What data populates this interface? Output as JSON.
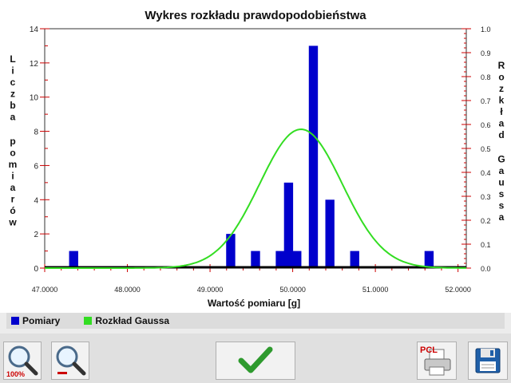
{
  "chart_data": {
    "type": "bar",
    "title": "Wykres rozkładu prawdopodobieństwa",
    "xlabel": "Wartość pomiaru [g]",
    "ylabel_left": "Liczba pomiarów",
    "ylabel_right": "Rozkład Gaussa",
    "xlim": [
      47.0,
      52.1
    ],
    "ylim_left": [
      0,
      14
    ],
    "ylim_right": [
      0,
      1.0
    ],
    "x_ticks": [
      "47.0000",
      "48.0000",
      "49.0000",
      "50.0000",
      "51.0000",
      "52.0000"
    ],
    "x_tick_values": [
      47,
      48,
      49,
      50,
      51,
      52
    ],
    "y_left_ticks": [
      0,
      2,
      4,
      6,
      8,
      10,
      12,
      14
    ],
    "y_right_ticks": [
      "0.0",
      "0.1",
      "0.2",
      "0.3",
      "0.4",
      "0.5",
      "0.6",
      "0.7",
      "0.8",
      "0.9",
      "1.0"
    ],
    "series": [
      {
        "name": "Pomiary",
        "kind": "bar",
        "color": "#0000cc",
        "x": [
          47.35,
          49.25,
          49.55,
          49.85,
          49.95,
          50.05,
          50.25,
          50.45,
          50.75,
          51.65
        ],
        "values": [
          1,
          2,
          1,
          1,
          5,
          1,
          13,
          4,
          1,
          1
        ]
      },
      {
        "name": "Rozkład Gaussa",
        "kind": "line",
        "color": "#33dd22",
        "mean": 50.1,
        "sd": 0.5,
        "peak": 0.58
      }
    ],
    "grid": false,
    "legend": "bottom"
  },
  "toolbar": {
    "zoom_reset_label": "100%",
    "print_label": "PCL"
  },
  "colors": {
    "bar": "#0000cc",
    "gauss": "#33dd22",
    "axis": "#cc0000"
  }
}
